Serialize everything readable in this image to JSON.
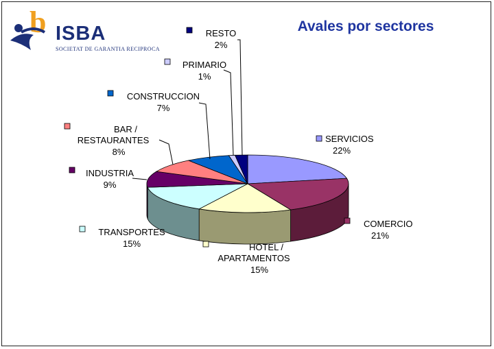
{
  "logo": {
    "name": "ISBA",
    "subtitle": "SOCIETAT DE GARANTIA RECIPROCA",
    "letter": "b"
  },
  "chart_data": {
    "type": "pie",
    "title": "Avales por sectores",
    "slices": [
      {
        "name": "SERVICIOS",
        "lines": [
          "SERVICIOS"
        ],
        "value": 22,
        "label": "22%",
        "color": "#9999ff",
        "side": "#5a5ab0"
      },
      {
        "name": "COMERCIO",
        "lines": [
          "COMERCIO"
        ],
        "value": 21,
        "label": "21%",
        "color": "#993366",
        "side": "#5c1c3a"
      },
      {
        "name": "HOTEL / APARTAMENTOS",
        "lines": [
          "HOTEL /",
          "APARTAMENTOS"
        ],
        "value": 15,
        "label": "15%",
        "color": "#ffffcc",
        "side": "#9a9a72"
      },
      {
        "name": "TRANSPORTES",
        "lines": [
          "TRANSPORTES"
        ],
        "value": 15,
        "label": "15%",
        "color": "#ccffff",
        "side": "#6d8f8f"
      },
      {
        "name": "INDUSTRIA",
        "lines": [
          "INDUSTRIA"
        ],
        "value": 9,
        "label": "9%",
        "color": "#660066",
        "side": "#3a003a"
      },
      {
        "name": "BAR / RESTAURANTES",
        "lines": [
          "BAR /",
          "RESTAURANTES"
        ],
        "value": 8,
        "label": "8%",
        "color": "#ff8080",
        "side": "#a04848"
      },
      {
        "name": "CONSTRUCCION",
        "lines": [
          "CONSTRUCCION"
        ],
        "value": 7,
        "label": "7%",
        "color": "#0066cc",
        "side": "#003c7a"
      },
      {
        "name": "PRIMARIO",
        "lines": [
          "PRIMARIO"
        ],
        "value": 1,
        "label": "1%",
        "color": "#ccccff",
        "side": "#8080b0"
      },
      {
        "name": "RESTO",
        "lines": [
          "RESTO"
        ],
        "value": 2,
        "label": "2%",
        "color": "#000080",
        "side": "#000050"
      }
    ],
    "legend": "none"
  }
}
